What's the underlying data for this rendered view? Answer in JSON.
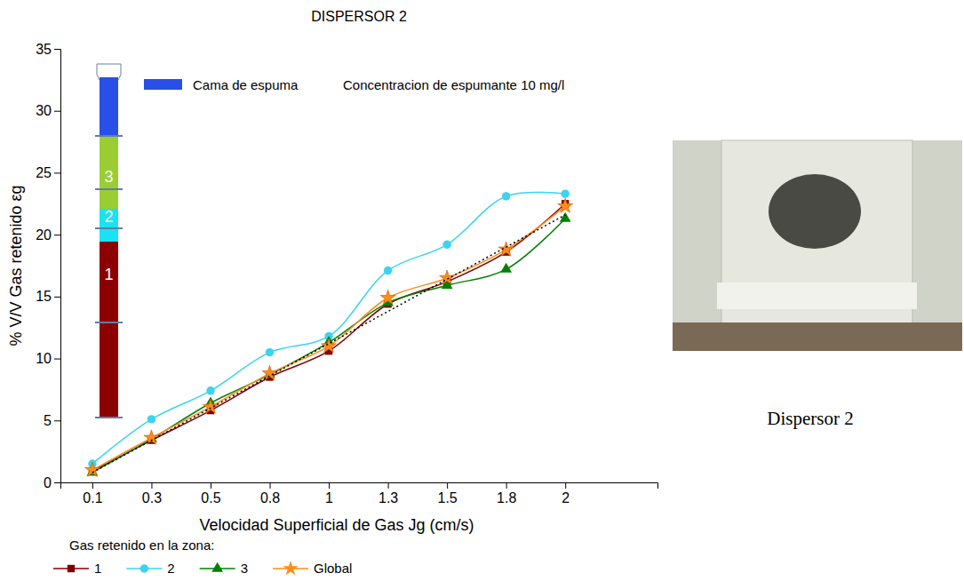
{
  "chart_data": {
    "type": "line",
    "title": "DISPERSOR 2",
    "x_label": "Velocidad Superficial de Gas Jg (cm/s)",
    "y_label": "% V/V Gas retenido εg",
    "categories": [
      "0.1",
      "0.3",
      "0.5",
      "0.8",
      "1",
      "1.3",
      "1.5",
      "1.8",
      "2"
    ],
    "ylim": [
      0,
      35
    ],
    "yticks": [
      0,
      5,
      10,
      15,
      20,
      25,
      30,
      35
    ],
    "legend": "bottom",
    "legend_title": "Gas retenido en la zona:",
    "annotations": [
      {
        "text": "Cama de espuma",
        "color": "#2a4fe6"
      },
      {
        "text": "Concentracion de espumante 10 mg/l"
      }
    ],
    "image_caption": "Dispersor 2",
    "series": [
      {
        "name": "1",
        "color": "#800000",
        "marker": "square",
        "line_style": "solid",
        "values": [
          0.9,
          3.4,
          5.8,
          8.5,
          10.6,
          14.4,
          16.2,
          18.6,
          22.5
        ]
      },
      {
        "name": "2",
        "color": "#3cd3f0",
        "marker": "circle",
        "line_style": "solid",
        "values": [
          1.5,
          5.1,
          7.4,
          10.5,
          11.8,
          17.1,
          19.2,
          23.1,
          23.3
        ]
      },
      {
        "name": "3",
        "color": "#008000",
        "marker": "triangle",
        "line_style": "solid",
        "values": [
          0.8,
          3.5,
          6.4,
          8.7,
          11.3,
          14.5,
          15.9,
          17.2,
          21.3
        ]
      },
      {
        "name": "Global",
        "color": "#ff8c1a",
        "marker": "star",
        "line_style": "solid",
        "values": [
          1.0,
          3.6,
          6.1,
          8.8,
          11.0,
          14.9,
          16.5,
          18.8,
          22.3
        ]
      },
      {
        "color": "#000000",
        "marker": "none",
        "line_style": "dotted",
        "values": [
          0.8,
          3.4,
          6.0,
          8.6,
          11.2,
          13.8,
          16.4,
          19.0,
          21.6
        ]
      }
    ]
  }
}
